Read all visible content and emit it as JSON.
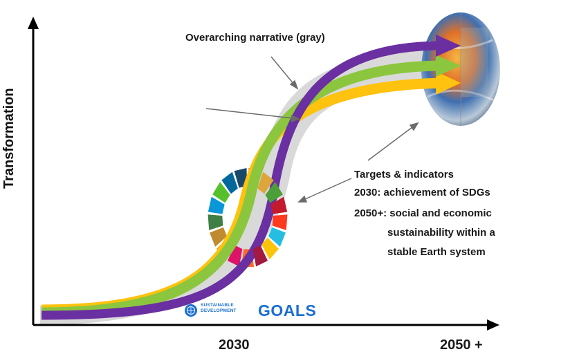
{
  "axes": {
    "y_label": "Transformation",
    "x_tick_1": "2030",
    "x_tick_2": "2050 +"
  },
  "annotations": {
    "overarching": "Overarching narrative (gray)",
    "targets_title": "Targets & indicators",
    "line_2030": "2030: achievement of SDGs",
    "line_2050_a": "2050+: social and economic",
    "line_2050_b": "sustainability within a",
    "line_2050_c": "stable Earth system"
  },
  "logo": {
    "sdg_line1": "SUSTAINABLE",
    "sdg_line2": "DEVELOPMENT",
    "goals": "GOALS"
  },
  "colors": {
    "narrative_band": "#d9d9d9",
    "purple_arrow": "#6a2fa0",
    "green_arrow": "#8cc63f",
    "yellow_arrow": "#ffc20e",
    "axis": "#000000",
    "logo_blue": "#1a6fd3"
  },
  "sdg_wheel_colors": [
    "#e5243b",
    "#dda63a",
    "#4c9f38",
    "#c5192d",
    "#ff3a21",
    "#26bde2",
    "#fcc30b",
    "#a21942",
    "#fd6925",
    "#dd1367",
    "#fd9d24",
    "#bf8b2e",
    "#3f7e44",
    "#0a97d9",
    "#56c02b",
    "#00689d",
    "#19486a"
  ]
}
